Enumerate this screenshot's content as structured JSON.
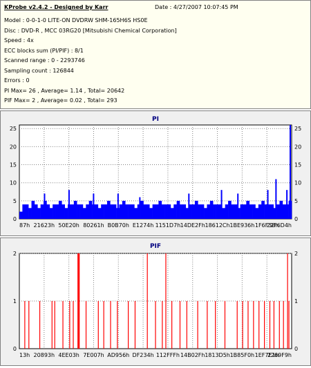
{
  "header": {
    "title": "KProbe v2.4.2 - Designed by Karr",
    "date": "Date : 4/27/2007 10:07:45 PM",
    "lines": [
      "Model : 0-0-1-0 LITE-ON DVDRW SHM-165H6S HS0E",
      "Disc : DVD-R , MCC 03RG20   [Mitsubishi Chemical Corporation]",
      "Speed : 4x",
      "ECC blocks sum (PI/PIF) : 8/1",
      "Scanned range : 0 - 2293746",
      "Sampling count : 126844",
      "Errors : 0",
      "PI Max= 26 , Average= 1.14 , Total= 20642",
      "PIF Max= 2 , Average= 0.02 , Total= 293"
    ]
  },
  "colors": {
    "pi_bar": "#0000ff",
    "pif_bar": "#ff0000",
    "title": "#000080",
    "grid": "#808080",
    "panel": "#f0f0f0"
  },
  "chart_data": [
    {
      "type": "bar",
      "title": "PI",
      "x_tick_labels": [
        "87h",
        "21623h",
        "50E20h",
        "80261h",
        "B0B70h",
        "E1274h",
        "1151D7h",
        "14DE2Fh",
        "18612Ch",
        "1BE936h",
        "1F6F38h",
        "22F6D4h"
      ],
      "yticks": [
        0,
        5,
        10,
        15,
        20,
        25
      ],
      "ylim": [
        0,
        26
      ],
      "grid": true,
      "summary": {
        "max": 26,
        "average": 1.14,
        "total": 20642
      },
      "series": [
        {
          "baseline": [
            2,
            4,
            4,
            3,
            5,
            4,
            3,
            4,
            5,
            4,
            3,
            4,
            4,
            5,
            4,
            3,
            4,
            4,
            5,
            4,
            4,
            3,
            4,
            5,
            4,
            4,
            3,
            4,
            4,
            5,
            4,
            4,
            3,
            4,
            5,
            4,
            4,
            4,
            3,
            4,
            5,
            4,
            4,
            3,
            4,
            4,
            5,
            4,
            4,
            4,
            3,
            4,
            5,
            4,
            4,
            3,
            4,
            4,
            5,
            4,
            4,
            3,
            4,
            5,
            4,
            4,
            4,
            3,
            4,
            5,
            4,
            4,
            3,
            4,
            4,
            5,
            4,
            4,
            3,
            4,
            5,
            4,
            4,
            4,
            3,
            4,
            5,
            4,
            4,
            5
          ],
          "spikes": [
            {
              "x": 0.09,
              "value": 7
            },
            {
              "x": 0.18,
              "value": 8
            },
            {
              "x": 0.27,
              "value": 7
            },
            {
              "x": 0.36,
              "value": 7
            },
            {
              "x": 0.44,
              "value": 6
            },
            {
              "x": 0.62,
              "value": 7
            },
            {
              "x": 0.74,
              "value": 8
            },
            {
              "x": 0.8,
              "value": 7
            },
            {
              "x": 0.91,
              "value": 8
            },
            {
              "x": 0.94,
              "value": 11
            },
            {
              "x": 0.98,
              "value": 8
            },
            {
              "x": 1.0,
              "value": 26
            }
          ]
        }
      ]
    },
    {
      "type": "bar",
      "title": "PIF",
      "x_tick_labels": [
        "13h",
        "20893h",
        "4EE03h",
        "7E007h",
        "AD956h",
        "DF234h",
        "112FFFh",
        "14B02Fh",
        "1813D5h",
        "1B85F0h",
        "1EF7E1h",
        "2269F9h"
      ],
      "yticks": [
        0,
        1,
        2
      ],
      "ylim": [
        0,
        2
      ],
      "grid": true,
      "summary": {
        "max": 2,
        "average": 0.02,
        "total": 293
      },
      "series": [
        {
          "bars": [
            [
              0.02,
              1
            ],
            [
              0.035,
              1
            ],
            [
              0.075,
              1
            ],
            [
              0.12,
              1
            ],
            [
              0.13,
              1
            ],
            [
              0.16,
              1
            ],
            [
              0.185,
              1
            ],
            [
              0.198,
              1
            ],
            [
              0.215,
              2
            ],
            [
              0.218,
              2
            ],
            [
              0.22,
              2
            ],
            [
              0.245,
              1
            ],
            [
              0.29,
              1
            ],
            [
              0.31,
              1
            ],
            [
              0.335,
              1
            ],
            [
              0.36,
              1
            ],
            [
              0.4,
              1
            ],
            [
              0.425,
              1
            ],
            [
              0.47,
              2
            ],
            [
              0.5,
              1
            ],
            [
              0.525,
              1
            ],
            [
              0.538,
              2
            ],
            [
              0.56,
              1
            ],
            [
              0.59,
              1
            ],
            [
              0.615,
              1
            ],
            [
              0.655,
              1
            ],
            [
              0.69,
              1
            ],
            [
              0.72,
              1
            ],
            [
              0.755,
              1
            ],
            [
              0.8,
              1
            ],
            [
              0.82,
              1
            ],
            [
              0.84,
              1
            ],
            [
              0.86,
              1
            ],
            [
              0.88,
              1
            ],
            [
              0.9,
              1
            ],
            [
              0.92,
              1
            ],
            [
              0.935,
              1
            ],
            [
              0.955,
              1
            ],
            [
              0.97,
              1
            ],
            [
              0.985,
              2
            ],
            [
              0.99,
              1
            ]
          ]
        }
      ]
    }
  ]
}
